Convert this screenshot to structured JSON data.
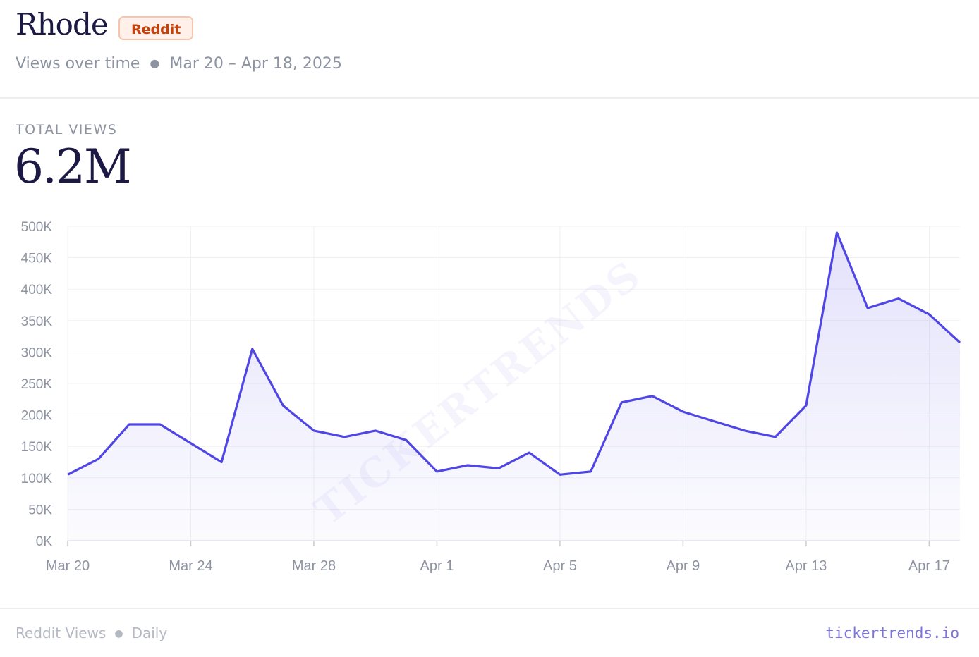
{
  "header": {
    "title": "Rhode",
    "badge": "Reddit",
    "subtitle": "Views over time",
    "date_range": "Mar 20 – Apr 18, 2025"
  },
  "kpi": {
    "label": "TOTAL VIEWS",
    "value": "6.2M"
  },
  "watermark": "TICKERTRENDS",
  "footer": {
    "left_1": "Reddit Views",
    "left_2": "Daily",
    "brand": "tickertrends.io"
  },
  "colors": {
    "line": "#4f46e5",
    "badge_text": "#c2410c",
    "brand": "#7b74de"
  },
  "chart_data": {
    "type": "area",
    "x": [
      "Mar 20",
      "Mar 21",
      "Mar 22",
      "Mar 23",
      "Mar 24",
      "Mar 25",
      "Mar 26",
      "Mar 27",
      "Mar 28",
      "Mar 29",
      "Mar 30",
      "Mar 31",
      "Apr 1",
      "Apr 2",
      "Apr 3",
      "Apr 4",
      "Apr 5",
      "Apr 6",
      "Apr 7",
      "Apr 8",
      "Apr 9",
      "Apr 10",
      "Apr 11",
      "Apr 12",
      "Apr 13",
      "Apr 14",
      "Apr 15",
      "Apr 16",
      "Apr 17",
      "Apr 18"
    ],
    "values": [
      105000,
      130000,
      185000,
      185000,
      155000,
      125000,
      305000,
      215000,
      175000,
      165000,
      175000,
      160000,
      110000,
      120000,
      115000,
      140000,
      105000,
      110000,
      220000,
      230000,
      205000,
      190000,
      175000,
      165000,
      215000,
      490000,
      370000,
      385000,
      360000,
      315000
    ],
    "xticks": [
      "Mar 20",
      "Mar 24",
      "Mar 28",
      "Apr 1",
      "Apr 5",
      "Apr 9",
      "Apr 13",
      "Apr 17"
    ],
    "yticks": [
      "0K",
      "50K",
      "100K",
      "150K",
      "200K",
      "250K",
      "300K",
      "350K",
      "400K",
      "450K",
      "500K"
    ],
    "ylim": [
      0,
      500000
    ],
    "grid": true,
    "title": "",
    "xlabel": "",
    "ylabel": ""
  }
}
